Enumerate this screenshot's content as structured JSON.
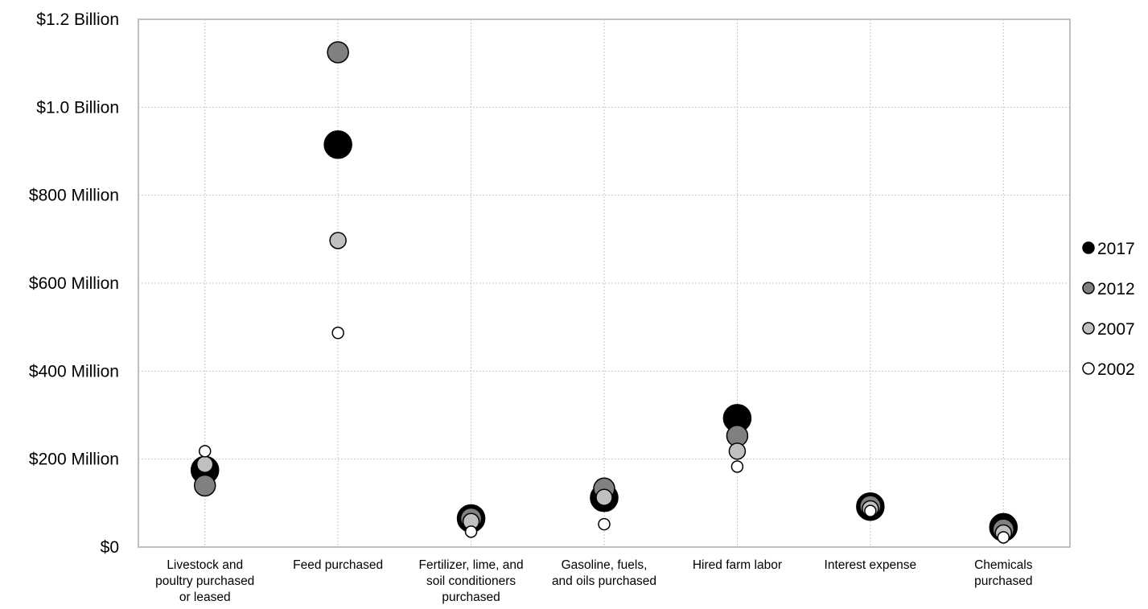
{
  "chart_data": {
    "type": "scatter",
    "title": "",
    "xlabel": "",
    "ylabel": "",
    "categories": [
      "Livestock and poultry purchased or leased",
      "Feed purchased",
      "Fertilizer, lime, and soil conditioners purchased",
      "Gasoline, fuels, and oils purchased",
      "Hired farm labor",
      "Interest expense",
      "Chemicals purchased"
    ],
    "category_label_lines": [
      [
        "Livestock and",
        "poultry purchased",
        "or leased"
      ],
      [
        "Feed purchased"
      ],
      [
        "Fertilizer, lime, and",
        "soil conditioners",
        "purchased"
      ],
      [
        "Gasoline, fuels,",
        "and oils purchased"
      ],
      [
        "Hired farm labor"
      ],
      [
        "Interest expense"
      ],
      [
        "Chemicals",
        "purchased"
      ]
    ],
    "ylim": [
      0,
      1200000000
    ],
    "yticks": [
      {
        "value": 0,
        "label": "$0"
      },
      {
        "value": 200000000,
        "label": "$200 Million"
      },
      {
        "value": 400000000,
        "label": "$400 Million"
      },
      {
        "value": 600000000,
        "label": "$600 Million"
      },
      {
        "value": 800000000,
        "label": "$800 Million"
      },
      {
        "value": 1000000000,
        "label": "$1.0 Billion"
      },
      {
        "value": 1200000000,
        "label": "$1.2 Billion"
      }
    ],
    "grid": true,
    "legend_position": "right",
    "series": [
      {
        "name": "2017",
        "color": "#000000",
        "values": [
          175000000,
          915000000,
          65000000,
          112000000,
          293000000,
          92000000,
          45000000
        ]
      },
      {
        "name": "2012",
        "color": "#808080",
        "values": [
          140000000,
          1125000000,
          65000000,
          133000000,
          253000000,
          93000000,
          40000000
        ]
      },
      {
        "name": "2007",
        "color": "#c0c0c0",
        "values": [
          188000000,
          697000000,
          58000000,
          113000000,
          218000000,
          87000000,
          32000000
        ]
      },
      {
        "name": "2002",
        "color": "#ffffff",
        "values": [
          218000000,
          487000000,
          35000000,
          52000000,
          183000000,
          82000000,
          22000000
        ]
      }
    ]
  }
}
